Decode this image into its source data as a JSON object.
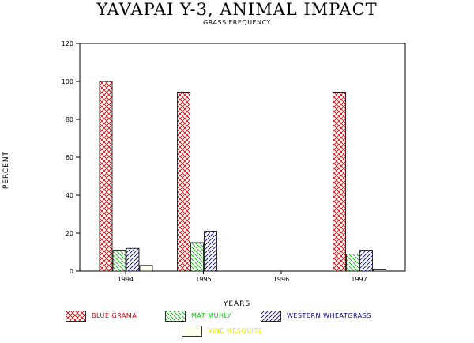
{
  "chart_data": {
    "type": "bar",
    "title": "YAVAPAI Y-3, ANIMAL IMPACT",
    "subtitle": "GRASS FREQUENCY",
    "xlabel": "YEARS",
    "ylabel": "PERCENT",
    "ylim": [
      0,
      120
    ],
    "yticks": [
      0,
      20,
      40,
      60,
      80,
      100,
      120
    ],
    "categories": [
      "1994",
      "1995",
      "1996",
      "1997"
    ],
    "grid": false,
    "legend_position": "bottom",
    "series": [
      {
        "name": "BLUE GRAMA",
        "values": [
          100,
          94,
          0,
          94
        ],
        "color": "#cc0000",
        "pattern": "crosshatch"
      },
      {
        "name": "MAT MUHLY",
        "values": [
          11,
          15,
          0,
          9
        ],
        "color": "#00cc00",
        "pattern": "diagonal-down"
      },
      {
        "name": "WESTERN WHEATGRASS",
        "values": [
          12,
          21,
          0,
          11
        ],
        "color": "#000080",
        "pattern": "diagonal-up"
      },
      {
        "name": "VINE MESQUITE",
        "values": [
          3,
          0,
          0,
          1
        ],
        "color": "#e6e600",
        "pattern": "solid-light"
      }
    ]
  }
}
